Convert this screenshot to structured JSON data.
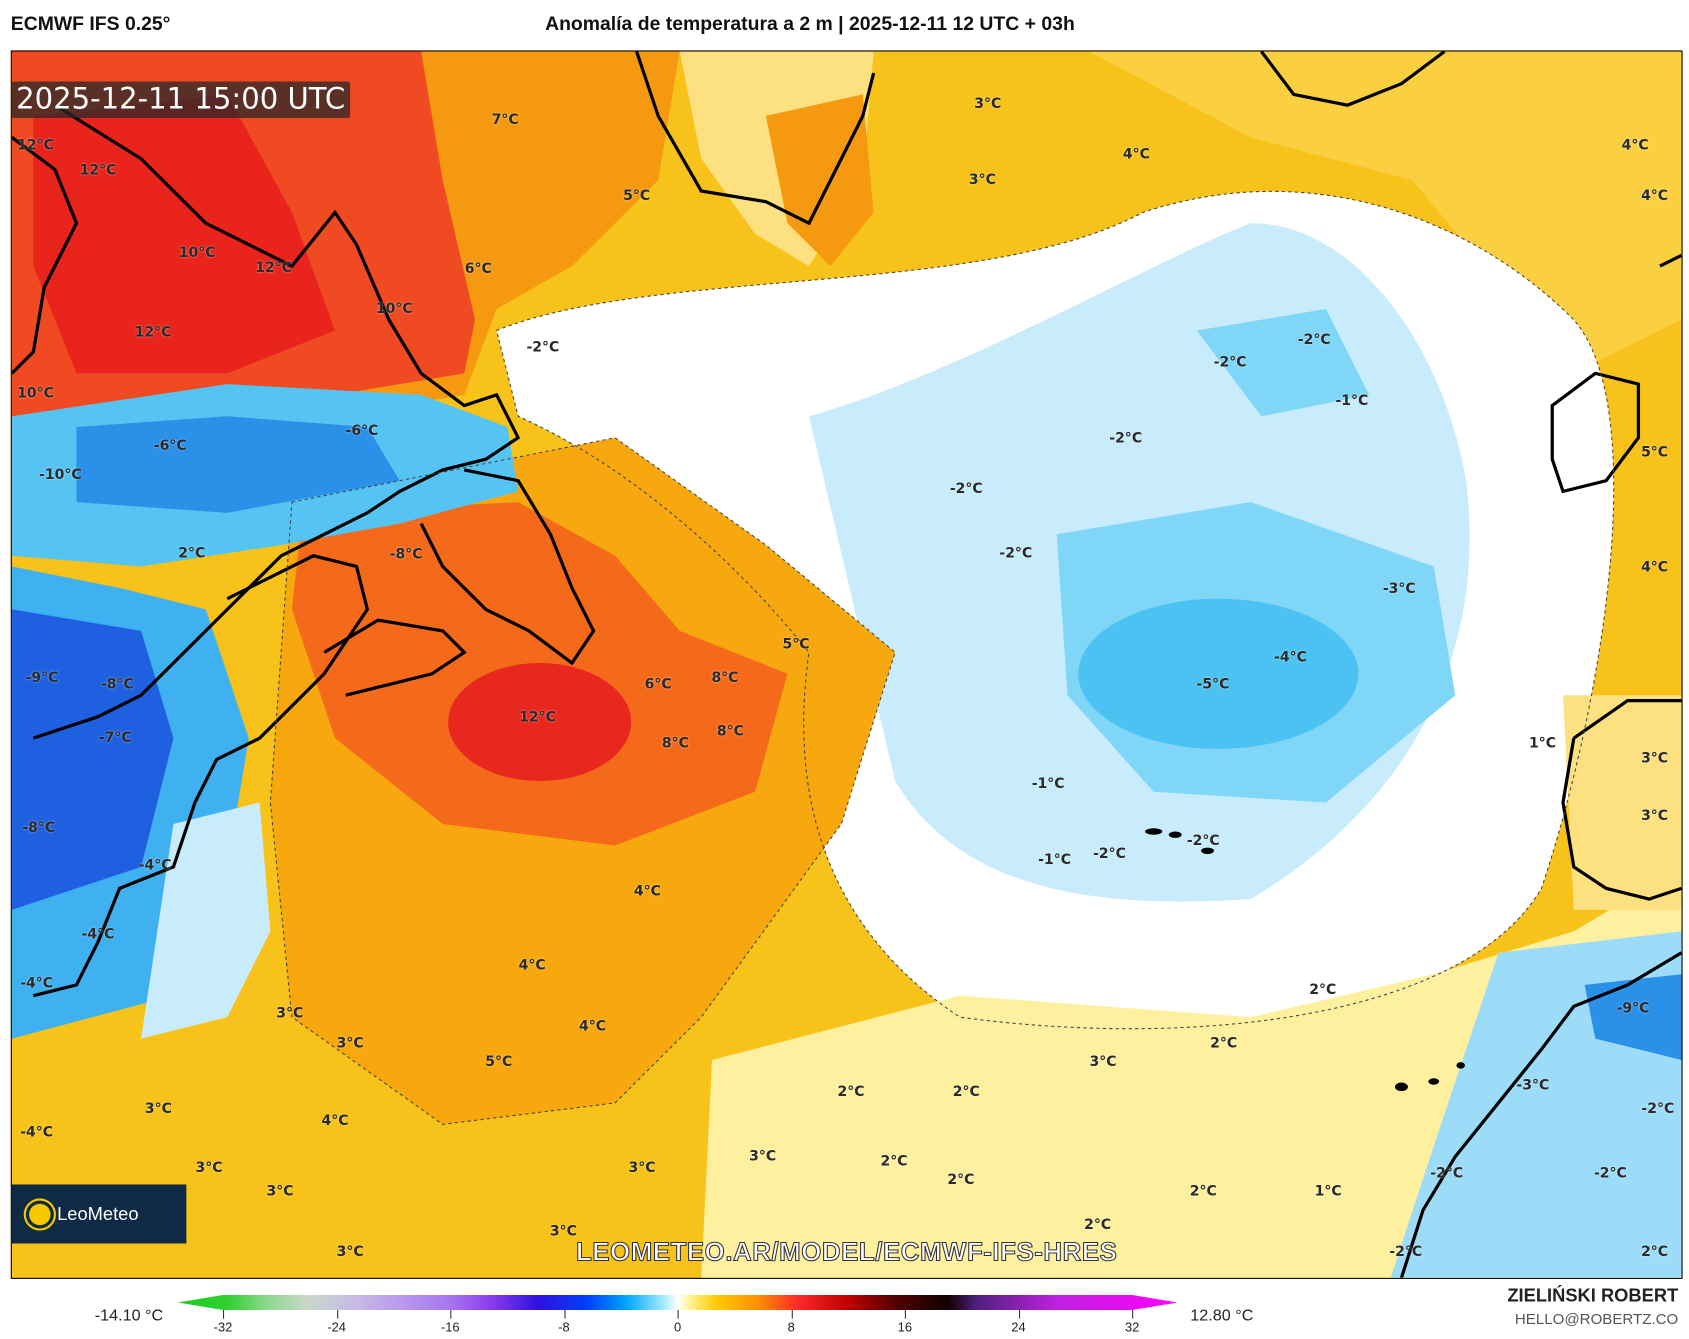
{
  "header": {
    "model": "ECMWF IFS 0.25°",
    "title": "Anomalía de temperatura a 2 m | 2025-12-11 12 UTC + 03h"
  },
  "map": {
    "valid_time": "2025-12-11 15:00 UTC",
    "watermark": "LEOMETEO.AR/MODEL/ECMWF-IFS-HRES",
    "logo_text": "LeoMeteo",
    "labels": [
      "12°C",
      "12°C",
      "10°C",
      "12°C",
      "12°C",
      "10°C",
      "10°C",
      "-6°C",
      "-6°C",
      "-10°C",
      "2°C",
      "-8°C",
      "7°C",
      "5°C",
      "6°C",
      "3°C",
      "3°C",
      "4°C",
      "4°C",
      "4°C",
      "-2°C",
      "-2°C",
      "-2°C",
      "-1°C",
      "-2°C",
      "-2°C",
      "-2°C",
      "5°C",
      "4°C",
      "-3°C",
      "-4°C",
      "-5°C",
      "5°C",
      "6°C",
      "8°C",
      "12°C",
      "8°C",
      "8°C",
      "-9°C",
      "-8°C",
      "-7°C",
      "-8°C",
      "-4°C",
      "4°C",
      "-1°C",
      "-2°C",
      "-1°C",
      "-2°C",
      "1°C",
      "3°C",
      "3°C",
      "-4°C",
      "-4°C",
      "4°C",
      "3°C",
      "3°C",
      "4°C",
      "5°C",
      "2°C",
      "-9°C",
      "2°C",
      "3°C",
      "3°C",
      "4°C",
      "2°C",
      "2°C",
      "-3°C",
      "-2°C",
      "-4°C",
      "3°C",
      "3°C",
      "3°C",
      "2°C",
      "2°C",
      "2°C",
      "1°C",
      "-2°C",
      "-2°C",
      "3°C",
      "3°C",
      "2°C",
      "3°C",
      "-2°C",
      "2°C"
    ]
  },
  "colorbar": {
    "min_label": "-14.10 °C",
    "max_label": "12.80 °C",
    "ticks": [
      "-32",
      "-24",
      "-16",
      "-8",
      "0",
      "8",
      "16",
      "24",
      "32"
    ],
    "range": [
      -32,
      32
    ]
  },
  "credits": {
    "author": "ZIELIŃSKI ROBERT",
    "email": "HELLO@ROBERTZ.CO"
  },
  "colors": {
    "warm": "#f7c21a",
    "hot": "#f0302a",
    "cold": "#40bdf0",
    "neutral": "#ffffff"
  }
}
